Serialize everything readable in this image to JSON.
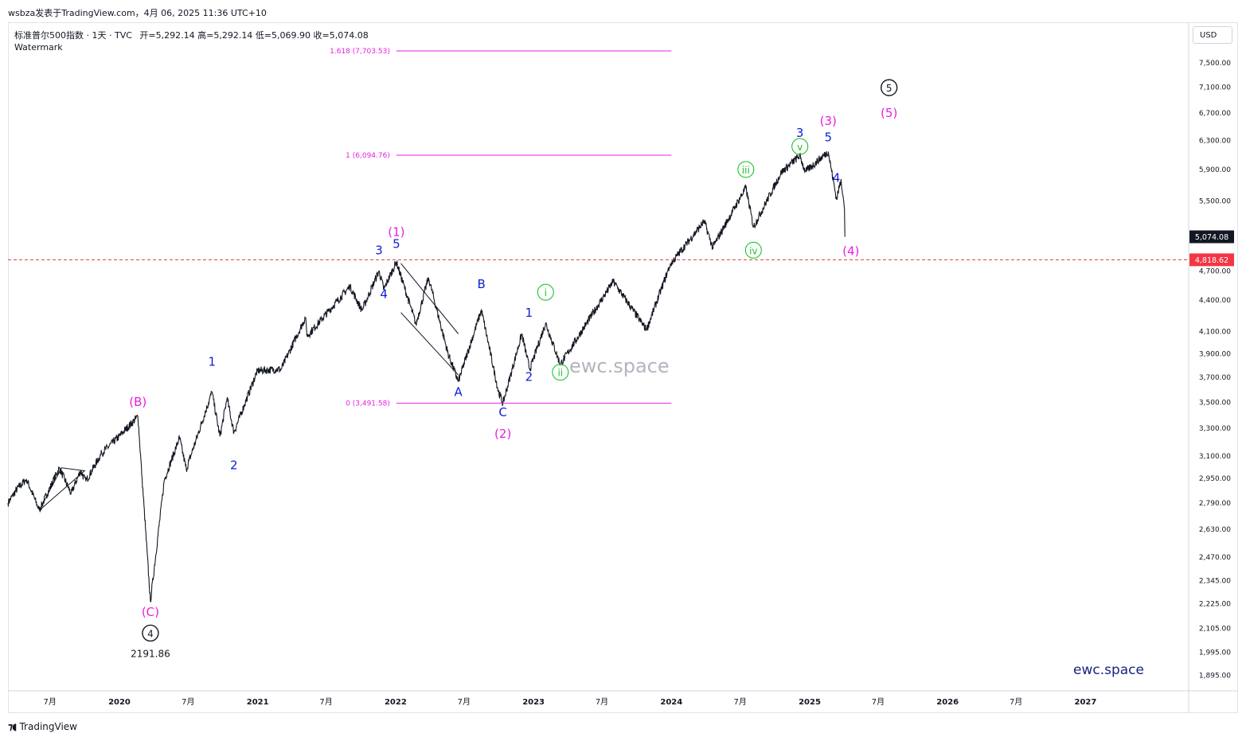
{
  "header": {
    "publisher": "wsbza发表于TradingView.com，4月 06, 2025 11:36 UTC+10",
    "symbol_title": "标准普尔500指数 · 1天 · TVC",
    "open": "开=5,292.14",
    "high": "高=5,292.14",
    "low": "低=5,069.90",
    "close": "收=5,074.08",
    "watermark_label": "Watermark"
  },
  "currency": "USD",
  "watermarks": {
    "center": "ewc.space",
    "corner": "ewc.space"
  },
  "branding": {
    "logo_icon": "tradingview-logo-icon",
    "name": "TradingView"
  },
  "colors": {
    "price_line": "#131722",
    "magenta": "#e91ee3",
    "blue": "#0d1ed8",
    "green": "#19c32b",
    "red_dashed": "#e53935",
    "last_price_bg": "#131722",
    "level_price_bg": "#f23645"
  },
  "chart_data": {
    "type": "line",
    "title": "标准普尔500指数 · 1天 · TVC",
    "ylabel": "USD",
    "log_scale": true,
    "ylim": [
      1830,
      8200
    ],
    "xlim": [
      "2019-03-12",
      "2027-10-01"
    ],
    "y_ticks": [
      {
        "v": 7500,
        "label": "7,500.00"
      },
      {
        "v": 7100,
        "label": "7,100.00"
      },
      {
        "v": 6700,
        "label": "6,700.00"
      },
      {
        "v": 6300,
        "label": "6,300.00"
      },
      {
        "v": 5900,
        "label": "5,900.00"
      },
      {
        "v": 5500,
        "label": "5,500.00"
      },
      {
        "v": 4700,
        "label": "4,700.00"
      },
      {
        "v": 4400,
        "label": "4,400.00"
      },
      {
        "v": 4100,
        "label": "4,100.00"
      },
      {
        "v": 3900,
        "label": "3,900.00"
      },
      {
        "v": 3700,
        "label": "3,700.00"
      },
      {
        "v": 3500,
        "label": "3,500.00"
      },
      {
        "v": 3300,
        "label": "3,300.00"
      },
      {
        "v": 3100,
        "label": "3,100.00"
      },
      {
        "v": 2950,
        "label": "2,950.00"
      },
      {
        "v": 2790,
        "label": "2,790.00"
      },
      {
        "v": 2630,
        "label": "2,630.00"
      },
      {
        "v": 2470,
        "label": "2,470.00"
      },
      {
        "v": 2345,
        "label": "2,345.00"
      },
      {
        "v": 2225,
        "label": "2,225.00"
      },
      {
        "v": 2105,
        "label": "2,105.00"
      },
      {
        "v": 1995,
        "label": "1,995.00"
      },
      {
        "v": 1895,
        "label": "1,895.00"
      }
    ],
    "x_ticks": [
      {
        "d": "2019-07-01",
        "label": "7月"
      },
      {
        "d": "2020-01-01",
        "label": "2020"
      },
      {
        "d": "2020-07-01",
        "label": "7月"
      },
      {
        "d": "2021-01-01",
        "label": "2021"
      },
      {
        "d": "2021-07-01",
        "label": "7月"
      },
      {
        "d": "2022-01-01",
        "label": "2022"
      },
      {
        "d": "2022-07-01",
        "label": "7月"
      },
      {
        "d": "2023-01-01",
        "label": "2023"
      },
      {
        "d": "2023-07-01",
        "label": "7月"
      },
      {
        "d": "2024-01-01",
        "label": "2024"
      },
      {
        "d": "2024-07-01",
        "label": "7月"
      },
      {
        "d": "2025-01-01",
        "label": "2025"
      },
      {
        "d": "2025-07-01",
        "label": "7月"
      },
      {
        "d": "2026-01-01",
        "label": "2026"
      },
      {
        "d": "2026-07-01",
        "label": "7月"
      },
      {
        "d": "2027-01-01",
        "label": "2027"
      }
    ],
    "price_path": [
      [
        "2019-03-12",
        2790
      ],
      [
        "2019-04-05",
        2880
      ],
      [
        "2019-04-30",
        2945
      ],
      [
        "2019-06-03",
        2745
      ],
      [
        "2019-07-26",
        3020
      ],
      [
        "2019-08-26",
        2850
      ],
      [
        "2019-09-20",
        3000
      ],
      [
        "2019-10-04",
        2930
      ],
      [
        "2019-11-15",
        3120
      ],
      [
        "2019-12-31",
        3240
      ],
      [
        "2020-02-19",
        3390
      ],
      [
        "2020-03-01",
        2950
      ],
      [
        "2020-03-23",
        2237
      ],
      [
        "2020-04-29",
        2940
      ],
      [
        "2020-06-08",
        3230
      ],
      [
        "2020-06-26",
        3010
      ],
      [
        "2020-09-02",
        3580
      ],
      [
        "2020-09-23",
        3240
      ],
      [
        "2020-10-12",
        3530
      ],
      [
        "2020-10-30",
        3270
      ],
      [
        "2020-12-31",
        3756
      ],
      [
        "2021-03-04",
        3770
      ],
      [
        "2021-05-07",
        4230
      ],
      [
        "2021-05-12",
        4060
      ],
      [
        "2021-09-02",
        4540
      ],
      [
        "2021-10-04",
        4300
      ],
      [
        "2021-11-18",
        4700
      ],
      [
        "2021-12-01",
        4510
      ],
      [
        "2022-01-03",
        4797
      ],
      [
        "2022-02-24",
        4170
      ],
      [
        "2022-03-29",
        4630
      ],
      [
        "2022-05-20",
        3900
      ],
      [
        "2022-06-16",
        3667
      ],
      [
        "2022-08-16",
        4305
      ],
      [
        "2022-09-30",
        3585
      ],
      [
        "2022-10-12",
        3491
      ],
      [
        "2022-12-01",
        4080
      ],
      [
        "2022-12-22",
        3765
      ],
      [
        "2023-02-02",
        4180
      ],
      [
        "2023-03-13",
        3808
      ],
      [
        "2023-07-31",
        4590
      ],
      [
        "2023-10-27",
        4117
      ],
      [
        "2023-12-29",
        4770
      ],
      [
        "2024-03-28",
        5254
      ],
      [
        "2024-04-19",
        4953
      ],
      [
        "2024-07-16",
        5669
      ],
      [
        "2024-08-05",
        5186
      ],
      [
        "2024-10-18",
        5865
      ],
      [
        "2024-12-06",
        6090
      ],
      [
        "2024-12-20",
        5870
      ],
      [
        "2025-02-19",
        6144
      ],
      [
        "2025-03-13",
        5521
      ],
      [
        "2025-03-25",
        5776
      ],
      [
        "2025-04-03",
        5396
      ],
      [
        "2025-04-04",
        5074
      ]
    ],
    "fib_levels": [
      {
        "value": 7703.53,
        "label": "1.618 (7,703.53)",
        "start": "2022-01-03",
        "end": "2024-01-01"
      },
      {
        "value": 6094.76,
        "label": "1 (6,094.76)",
        "start": "2022-01-03",
        "end": "2024-01-01"
      },
      {
        "value": 3491.58,
        "label": "0 (3,491.58)",
        "start": "2022-01-03",
        "end": "2024-01-01"
      }
    ],
    "last_price": {
      "value": 5074.08,
      "label": "5,074.08"
    },
    "level_line": {
      "value": 4818.62,
      "label": "4,818.62"
    },
    "trend_lines": [
      {
        "points": [
          [
            "2019-06-03",
            2745
          ],
          [
            "2019-08-01",
            3020
          ],
          [
            "2019-10-01",
            3000
          ],
          [
            "2019-06-03",
            2745
          ]
        ]
      },
      {
        "points": [
          [
            "2022-01-15",
            4280
          ],
          [
            "2022-06-16",
            3720
          ]
        ]
      },
      {
        "points": [
          [
            "2022-01-15",
            4780
          ],
          [
            "2022-06-16",
            4080
          ]
        ]
      }
    ],
    "wave_labels": [
      {
        "text": "5",
        "d": "2025-07-30",
        "v": 7030,
        "color": "black",
        "circled": true
      },
      {
        "text": "(5)",
        "d": "2025-07-30",
        "v": 6640,
        "color": "magenta"
      },
      {
        "text": "(3)",
        "d": "2025-02-19",
        "v": 6520,
        "color": "magenta"
      },
      {
        "text": "3",
        "d": "2024-12-06",
        "v": 6350,
        "color": "blue"
      },
      {
        "text": "5",
        "d": "2025-02-19",
        "v": 6290,
        "color": "blue"
      },
      {
        "text": "v",
        "d": "2024-12-06",
        "v": 6160,
        "color": "green",
        "circled": true
      },
      {
        "text": "iii",
        "d": "2024-07-16",
        "v": 5850,
        "color": "green",
        "circled": true
      },
      {
        "text": "4",
        "d": "2025-03-13",
        "v": 5740,
        "color": "blue"
      },
      {
        "text": "(4)",
        "d": "2025-04-20",
        "v": 4870,
        "color": "magenta"
      },
      {
        "text": "iv",
        "d": "2024-08-05",
        "v": 4880,
        "color": "green",
        "circled": true
      },
      {
        "text": "(1)",
        "d": "2022-01-03",
        "v": 5085,
        "color": "magenta"
      },
      {
        "text": "5",
        "d": "2022-01-03",
        "v": 4950,
        "color": "blue"
      },
      {
        "text": "3",
        "d": "2021-11-18",
        "v": 4880,
        "color": "blue"
      },
      {
        "text": "4",
        "d": "2021-12-01",
        "v": 4420,
        "color": "blue"
      },
      {
        "text": "B",
        "d": "2022-08-16",
        "v": 4520,
        "color": "blue"
      },
      {
        "text": "i",
        "d": "2023-02-02",
        "v": 4440,
        "color": "green",
        "circled": true
      },
      {
        "text": "1",
        "d": "2022-12-20",
        "v": 4240,
        "color": "blue"
      },
      {
        "text": "2",
        "d": "2022-12-20",
        "v": 3670,
        "color": "blue"
      },
      {
        "text": "ii",
        "d": "2023-03-13",
        "v": 3710,
        "color": "green",
        "circled": true
      },
      {
        "text": "A",
        "d": "2022-06-16",
        "v": 3550,
        "color": "blue"
      },
      {
        "text": "C",
        "d": "2022-10-12",
        "v": 3390,
        "color": "blue"
      },
      {
        "text": "(2)",
        "d": "2022-10-12",
        "v": 3230,
        "color": "magenta"
      },
      {
        "text": "1",
        "d": "2020-09-02",
        "v": 3800,
        "color": "blue"
      },
      {
        "text": "2",
        "d": "2020-10-30",
        "v": 3010,
        "color": "blue"
      },
      {
        "text": "(B)",
        "d": "2020-02-19",
        "v": 3470,
        "color": "magenta"
      },
      {
        "text": "(C)",
        "d": "2020-03-23",
        "v": 2165,
        "color": "magenta"
      },
      {
        "text": "4",
        "d": "2020-03-23",
        "v": 2065,
        "color": "black",
        "circled": true
      },
      {
        "text": "2191.86",
        "d": "2020-03-23",
        "v": 1975,
        "color": "black"
      }
    ]
  }
}
